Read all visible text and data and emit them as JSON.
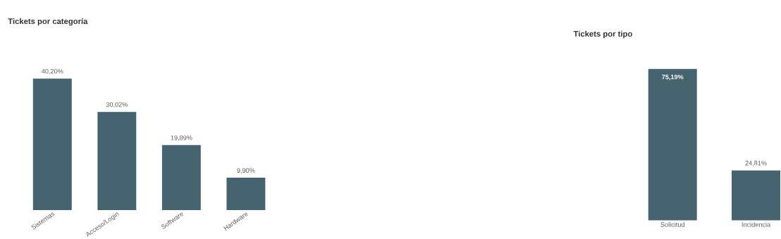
{
  "chart_data": [
    {
      "type": "bar",
      "title": "Tickets por categoría",
      "categories": [
        "Sistemas",
        "Acceso/Login",
        "Software",
        "Hardware"
      ],
      "values": [
        40.2,
        30.02,
        19.89,
        9.9
      ],
      "value_labels": [
        "40,20%",
        "30,02%",
        "19,89%",
        "9,90%"
      ],
      "color": "#466470"
    },
    {
      "type": "bar",
      "title": "Tickets por tipo",
      "categories": [
        "Solicitud",
        "Incidencia"
      ],
      "values": [
        75.19,
        24.81
      ],
      "value_labels": [
        "75,19%",
        "24,81%"
      ],
      "color": "#466470"
    }
  ]
}
